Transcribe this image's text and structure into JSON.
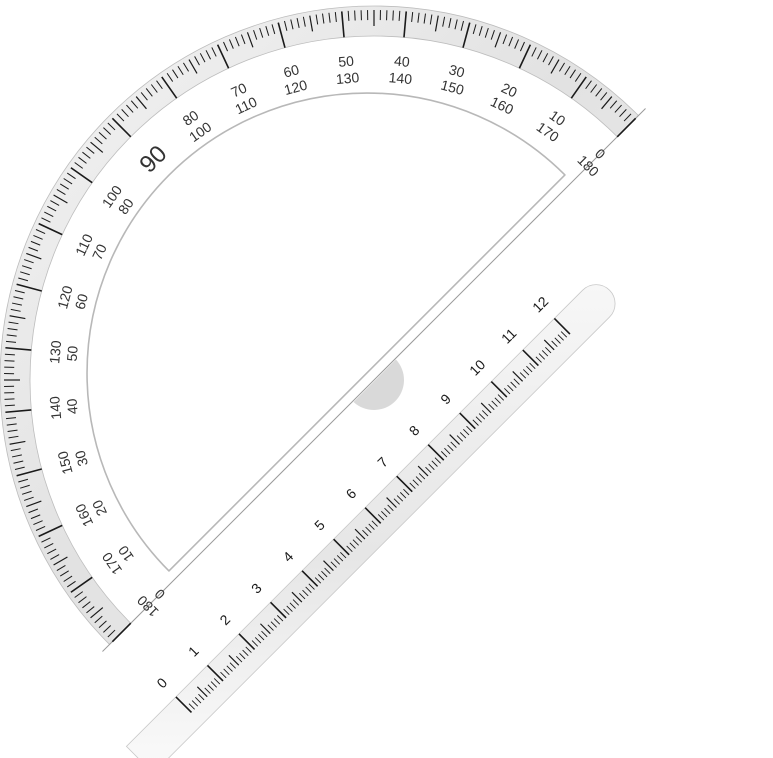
{
  "colors": {
    "band_fill": "#e4e4e4",
    "band_edge": "#bdbdbd",
    "tick": "#1a1a1a",
    "label": "#333333",
    "inner_edge": "#b8b8b8",
    "hub": "#d2d2d2"
  },
  "protractor": {
    "degree_range": [
      0,
      180
    ],
    "major_every": 10,
    "medium_every": 5,
    "outer_labels": [
      "0",
      "10",
      "20",
      "30",
      "40",
      "50",
      "60",
      "70",
      "80",
      "90",
      "100",
      "110",
      "120",
      "130",
      "140",
      "150",
      "160",
      "170",
      "180"
    ],
    "inner_labels": [
      "180",
      "170",
      "160",
      "150",
      "140",
      "130",
      "120",
      "110",
      "100",
      "",
      "80",
      "70",
      "60",
      "50",
      "40",
      "30",
      "20",
      "10",
      "0"
    ],
    "center_label": "90"
  },
  "ruler": {
    "range": [
      0,
      12
    ],
    "labels": [
      "0",
      "1",
      "2",
      "3",
      "4",
      "5",
      "6",
      "7",
      "8",
      "9",
      "10",
      "11",
      "12"
    ],
    "subdivisions_per_unit": 10
  }
}
